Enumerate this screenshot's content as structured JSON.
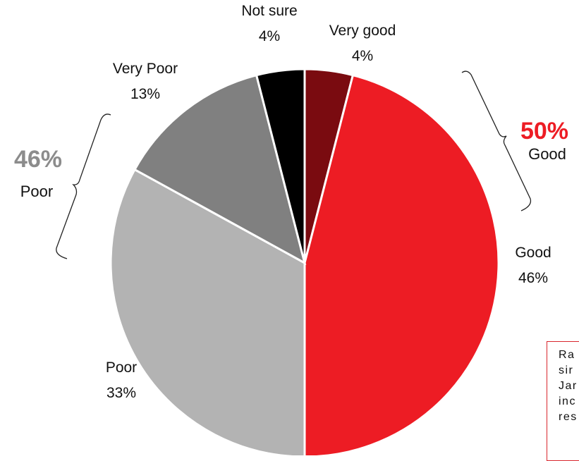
{
  "chart_data": {
    "type": "pie",
    "slices": [
      {
        "label": "Very good",
        "value": 4,
        "value_label": "4%",
        "color": "#7a0b10"
      },
      {
        "label": "Good",
        "value": 46,
        "value_label": "46%",
        "color": "#ed1c24"
      },
      {
        "label": "Poor",
        "value": 33,
        "value_label": "33%",
        "color": "#b3b3b3"
      },
      {
        "label": "Very Poor",
        "value": 13,
        "value_label": "13%",
        "color": "#808080"
      },
      {
        "label": "Not sure",
        "value": 4,
        "value_label": "4%",
        "color": "#000000"
      }
    ],
    "start_angle_deg": 0,
    "direction": "clockwise",
    "groups": [
      {
        "pct": "50%",
        "label": "Good",
        "color": "#ed1c24"
      },
      {
        "pct": "46%",
        "label": "Poor",
        "color": "#8c8c8c"
      }
    ]
  },
  "note": {
    "lines": [
      "Ra",
      "sir",
      "Jar",
      "inc",
      "res"
    ],
    "border_color": "#d9262e"
  }
}
